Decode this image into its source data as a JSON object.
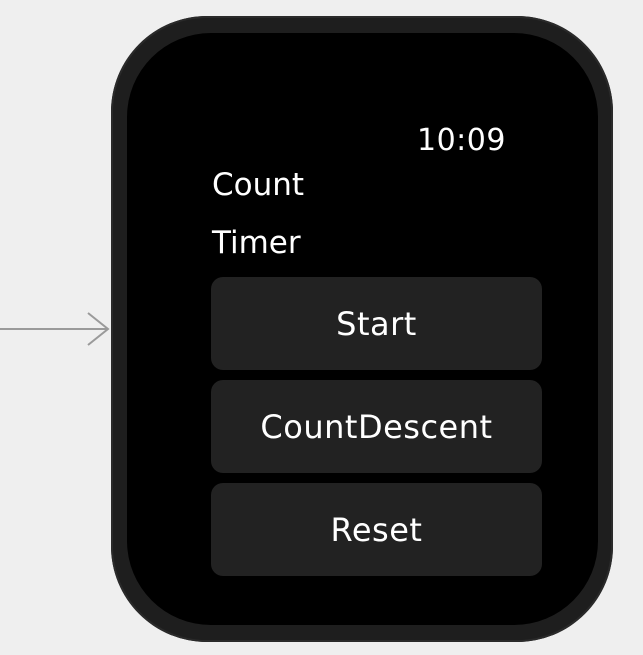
{
  "watch": {
    "time": "10:09",
    "labels": {
      "count": "Count",
      "timer": "Timer"
    },
    "buttons": {
      "start": "Start",
      "count_descent": "CountDescent",
      "reset": "Reset"
    }
  },
  "icons": {
    "entry_point": "arrow-right-icon"
  },
  "colors": {
    "canvas_background": "#efefef",
    "bezel": "#1e1e1e",
    "screen": "#000000",
    "button": "#222222",
    "text": "#ffffff",
    "arrow": "#9a9a9a"
  }
}
